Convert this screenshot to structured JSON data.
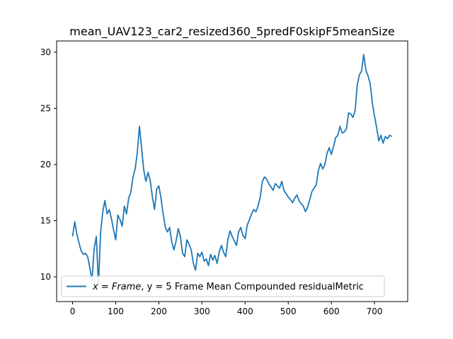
{
  "chart_data": {
    "type": "line",
    "title": "mean_UAV123_car2_resized360_5predF0skipF5meanSize",
    "xlabel": "",
    "ylabel": "",
    "xlim": [
      -37,
      777
    ],
    "ylim": [
      7.8,
      31.0
    ],
    "xticks": [
      0,
      100,
      200,
      300,
      400,
      500,
      600,
      700
    ],
    "yticks": [
      10,
      15,
      20,
      25,
      30
    ],
    "grid": false,
    "legend_position": "lower-left",
    "series": [
      {
        "name_prefix": "x = Frame",
        "name_suffix": ", y = 5 Frame Mean Compounded residualMetric",
        "color": "#1f77b4",
        "x": [
          0,
          5,
          10,
          15,
          20,
          25,
          30,
          35,
          40,
          45,
          50,
          55,
          60,
          65,
          70,
          75,
          80,
          85,
          90,
          95,
          100,
          105,
          110,
          115,
          120,
          125,
          130,
          135,
          140,
          145,
          150,
          155,
          160,
          165,
          170,
          175,
          180,
          185,
          190,
          195,
          200,
          205,
          210,
          215,
          220,
          225,
          230,
          235,
          240,
          245,
          250,
          255,
          260,
          265,
          270,
          275,
          280,
          285,
          290,
          295,
          300,
          305,
          310,
          315,
          320,
          325,
          330,
          335,
          340,
          345,
          350,
          355,
          360,
          365,
          370,
          375,
          380,
          385,
          390,
          395,
          400,
          405,
          410,
          415,
          420,
          425,
          430,
          435,
          440,
          445,
          450,
          455,
          460,
          465,
          470,
          475,
          480,
          485,
          490,
          495,
          500,
          505,
          510,
          515,
          520,
          525,
          530,
          535,
          540,
          545,
          550,
          555,
          560,
          565,
          570,
          575,
          580,
          585,
          590,
          595,
          600,
          605,
          610,
          615,
          620,
          625,
          630,
          635,
          640,
          645,
          650,
          655,
          660,
          665,
          670,
          675,
          680,
          685,
          690,
          695,
          700,
          705,
          710,
          715,
          720,
          725,
          730,
          735,
          740
        ],
        "y": [
          13.6,
          14.9,
          13.8,
          13.0,
          12.3,
          12.0,
          12.1,
          11.8,
          10.8,
          9.7,
          12.5,
          13.6,
          9.3,
          14.0,
          15.8,
          16.8,
          15.6,
          16.0,
          15.2,
          14.2,
          13.3,
          15.5,
          15.1,
          14.5,
          16.3,
          15.6,
          17.0,
          17.5,
          18.9,
          19.6,
          21.0,
          23.4,
          21.5,
          19.5,
          18.5,
          19.3,
          18.6,
          17.1,
          16.0,
          17.8,
          18.1,
          17.0,
          15.6,
          14.4,
          14.0,
          14.4,
          13.1,
          12.4,
          13.2,
          14.3,
          13.6,
          12.1,
          11.8,
          13.3,
          12.9,
          12.4,
          11.2,
          10.6,
          12.1,
          11.8,
          12.2,
          11.4,
          11.6,
          11.0,
          12.0,
          11.5,
          11.9,
          11.2,
          12.2,
          12.8,
          12.2,
          11.8,
          13.3,
          14.1,
          13.6,
          13.2,
          12.8,
          14.0,
          14.4,
          13.7,
          13.4,
          14.6,
          15.1,
          15.6,
          16.0,
          15.8,
          16.3,
          17.1,
          18.5,
          18.9,
          18.7,
          18.3,
          18.0,
          17.7,
          18.3,
          18.1,
          17.9,
          18.5,
          17.7,
          17.4,
          17.1,
          16.9,
          16.6,
          17.0,
          17.3,
          16.8,
          16.5,
          16.3,
          15.8,
          16.2,
          16.9,
          17.6,
          17.9,
          18.2,
          19.5,
          20.1,
          19.6,
          20.0,
          21.0,
          21.5,
          20.9,
          21.6,
          22.4,
          22.6,
          23.4,
          22.8,
          22.9,
          23.2,
          24.6,
          24.5,
          24.2,
          24.8,
          27.1,
          28.0,
          28.3,
          29.8,
          28.4,
          27.9,
          27.2,
          25.5,
          24.3,
          23.3,
          22.1,
          22.6,
          21.9,
          22.5,
          22.3,
          22.6,
          22.5
        ]
      }
    ]
  }
}
